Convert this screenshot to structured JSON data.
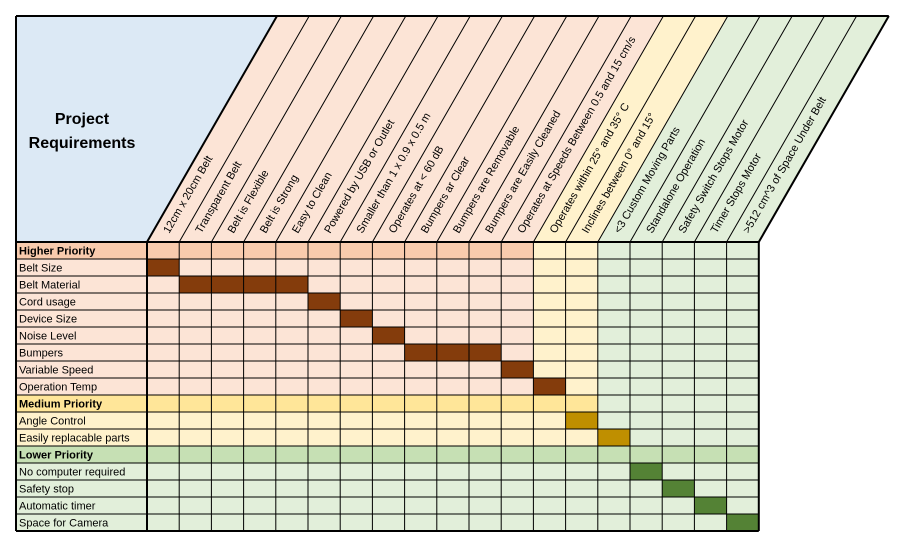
{
  "title_lines": [
    "Project",
    "Requirements"
  ],
  "colors": {
    "corner_bg": "#dce9f5",
    "high_bg": "#fce4d6",
    "high_header": "#f8cbad",
    "high_mark": "#843c0c",
    "med_bg": "#fff2cc",
    "med_header": "#ffe699",
    "med_mark": "#bf8f00",
    "low_bg": "#e2efda",
    "low_header": "#c6e0b4",
    "low_mark": "#548235",
    "grid": "#000000"
  },
  "columns": [
    {
      "label": "12cm x 20cm Belt",
      "group": "high"
    },
    {
      "label": "Transparent Belt",
      "group": "high"
    },
    {
      "label": "Belt is Flexible",
      "group": "high"
    },
    {
      "label": "Belt is Strong",
      "group": "high"
    },
    {
      "label": "Easy to Clean",
      "group": "high"
    },
    {
      "label": "Powered by USB or Outlet",
      "group": "high"
    },
    {
      "label": "Smaller than 1 x 0.9 x 0.5 m",
      "group": "high"
    },
    {
      "label": "Operates at < 60 dB",
      "group": "high"
    },
    {
      "label": "Bumpers ar Clear",
      "group": "high"
    },
    {
      "label": "Bumpers are Removable",
      "group": "high"
    },
    {
      "label": "Bumpers are Easily Cleaned",
      "group": "high"
    },
    {
      "label": "Operates at Speeds Between 0.5 and 15 cm/s",
      "group": "high"
    },
    {
      "label": "Operates within 25° and 35° C",
      "group": "med"
    },
    {
      "label": "Inclines between 0° and 15°",
      "group": "med"
    },
    {
      "label": "<3 Custom Moving Parts",
      "group": "low"
    },
    {
      "label": "Standalone Operation",
      "group": "low"
    },
    {
      "label": "Safety Switch Stops Motor",
      "group": "low"
    },
    {
      "label": "Timer Stops Motor",
      "group": "low"
    },
    {
      "label": ">512 cm^3 of Space Under Belt",
      "group": "low"
    }
  ],
  "rows": [
    {
      "label": "Higher Priority",
      "header": true,
      "group": "high"
    },
    {
      "label": "Belt Size",
      "group": "high",
      "marks": [
        0
      ]
    },
    {
      "label": "Belt Material",
      "group": "high",
      "marks": [
        1,
        2,
        3,
        4
      ]
    },
    {
      "label": "Cord usage",
      "group": "high",
      "marks": [
        5
      ]
    },
    {
      "label": "Device Size",
      "group": "high",
      "marks": [
        6
      ]
    },
    {
      "label": "Noise Level",
      "group": "high",
      "marks": [
        7
      ]
    },
    {
      "label": "Bumpers",
      "group": "high",
      "marks": [
        8,
        9,
        10
      ]
    },
    {
      "label": "Variable Speed",
      "group": "high",
      "marks": [
        11
      ]
    },
    {
      "label": "Operation Temp",
      "group": "high",
      "marks": [
        12
      ]
    },
    {
      "label": "Medium Priority",
      "header": true,
      "group": "med"
    },
    {
      "label": "Angle Control",
      "group": "med",
      "marks": [
        13
      ]
    },
    {
      "label": "Easily replacable parts",
      "group": "med",
      "marks": [
        14
      ]
    },
    {
      "label": "Lower Priority",
      "header": true,
      "group": "low"
    },
    {
      "label": "No computer required",
      "group": "low",
      "marks": [
        15
      ]
    },
    {
      "label": "Safety stop",
      "group": "low",
      "marks": [
        16
      ]
    },
    {
      "label": "Automatic timer",
      "group": "low",
      "marks": [
        17
      ]
    },
    {
      "label": "Space for Camera",
      "group": "low",
      "marks": [
        18
      ]
    }
  ]
}
